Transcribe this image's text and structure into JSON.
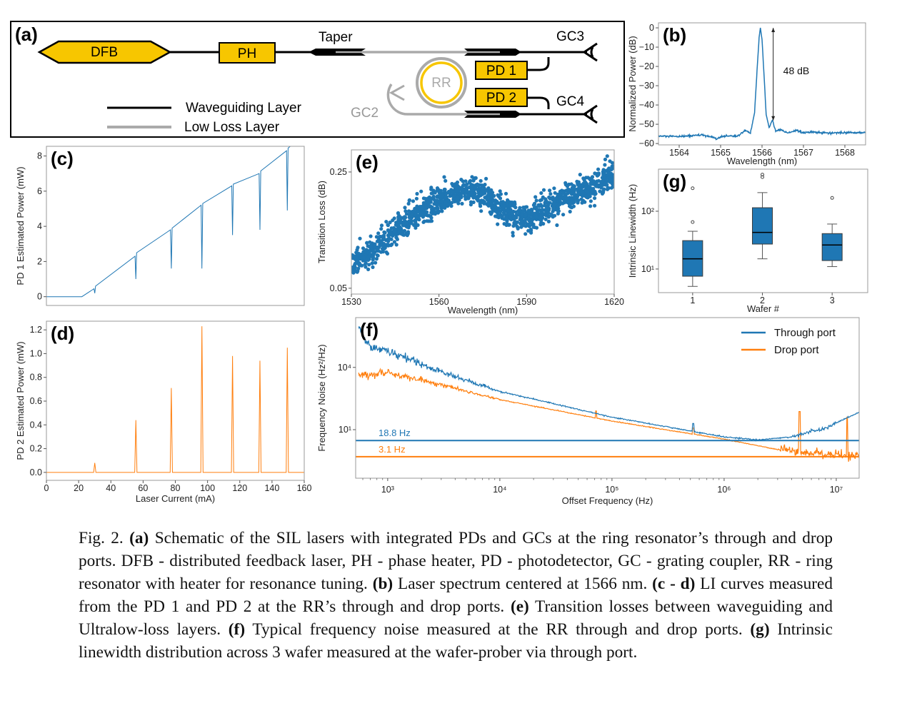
{
  "panel_a": {
    "label": "(a)",
    "dfb": "DFB",
    "ph": "PH",
    "taper": "Taper",
    "rr": "RR",
    "pd1": "PD 1",
    "pd2": "PD 2",
    "gc2": "GC2",
    "gc3": "GC3",
    "gc4": "GC4",
    "legend": [
      "Waveguiding Layer",
      "Low Loss Layer"
    ],
    "colors": {
      "component": "#f7c600",
      "waveguide": "#000000",
      "low_loss": "#aaaaaa"
    }
  },
  "chart_data": [
    {
      "id": "b",
      "panel_label": "(b)",
      "type": "line",
      "xlabel": "Wavelength (nm)",
      "ylabel": "Normalized Power (dB)",
      "xlim": [
        1563.5,
        1568.5
      ],
      "ylim": [
        -60.7,
        2.6
      ],
      "xscale": "linear",
      "yscale": "linear",
      "xticks": [
        1564,
        1565,
        1566,
        1567,
        1568
      ],
      "xtick_labels": [
        "1564",
        "1565",
        "1566",
        "1567",
        "1568"
      ],
      "yticks": [
        0,
        -10,
        -20,
        -30,
        -40,
        -50,
        -60
      ],
      "ytick_labels": [
        "0",
        "−10",
        "−20",
        "−30",
        "−40",
        "−50",
        "−60"
      ],
      "series": [
        {
          "name": "Spectrum",
          "color": "#1f77b4",
          "points": [
            [
              1563.5,
              -56.2
            ],
            [
              1564.0,
              -56.4
            ],
            [
              1564.5,
              -55.6
            ],
            [
              1564.7,
              -56.2
            ],
            [
              1564.9,
              -57.6
            ],
            [
              1565.1,
              -56.0
            ],
            [
              1565.4,
              -56.2
            ],
            [
              1565.6,
              -53.2
            ],
            [
              1565.72,
              -54.6
            ],
            [
              1565.82,
              -44
            ],
            [
              1565.88,
              -22
            ],
            [
              1565.93,
              -5
            ],
            [
              1565.96,
              0
            ],
            [
              1566.0,
              -6
            ],
            [
              1566.05,
              -25
            ],
            [
              1566.1,
              -45
            ],
            [
              1566.17,
              -51.5
            ],
            [
              1566.25,
              -48
            ],
            [
              1566.33,
              -53.5
            ],
            [
              1566.45,
              -52.8
            ],
            [
              1566.6,
              -54.4
            ],
            [
              1566.85,
              -53.2
            ],
            [
              1567.0,
              -54.6
            ],
            [
              1567.2,
              -54.0
            ],
            [
              1567.6,
              -54.6
            ],
            [
              1568.0,
              -54.4
            ],
            [
              1568.5,
              -54.3
            ]
          ]
        }
      ],
      "annotation": {
        "text": "48 dB",
        "from": [
          1566.27,
          0
        ],
        "to": [
          1566.27,
          -48
        ]
      }
    },
    {
      "id": "c",
      "panel_label": "(c)",
      "type": "line",
      "xlabel": "",
      "ylabel": "PD 1 Estimated Power (mW)",
      "xlim": [
        0,
        160
      ],
      "ylim": [
        -0.5,
        8.55
      ],
      "xscale": "linear",
      "yscale": "linear",
      "xticks": [],
      "xtick_labels": [],
      "yticks": [
        0,
        2,
        4,
        6,
        8
      ],
      "ytick_labels": [
        "0",
        "2",
        "4",
        "6",
        "8"
      ],
      "series": [
        {
          "name": "PD 1",
          "color": "#1f77b4",
          "points": [
            [
              0,
              0
            ],
            [
              22,
              0
            ],
            [
              27,
              0.3
            ],
            [
              29.5,
              0.45
            ],
            [
              30,
              0.2
            ],
            [
              30.5,
              0.6
            ],
            [
              55,
              2.3
            ],
            [
              55.5,
              1.0
            ],
            [
              56,
              2.5
            ],
            [
              77,
              3.8
            ],
            [
              77.5,
              1.6
            ],
            [
              78,
              3.9
            ],
            [
              96,
              5.2
            ],
            [
              96.5,
              1.6
            ],
            [
              97,
              5.3
            ],
            [
              115,
              6.3
            ],
            [
              115.5,
              3.5
            ],
            [
              116,
              6.4
            ],
            [
              132,
              7.0
            ],
            [
              132.5,
              3.8
            ],
            [
              133,
              7.15
            ],
            [
              149,
              8.3
            ],
            [
              149.5,
              4.9
            ],
            [
              150,
              8.45
            ],
            [
              160,
              9.2
            ]
          ]
        }
      ]
    },
    {
      "id": "e",
      "panel_label": "(e)",
      "type": "scatter",
      "xlabel": "Wavelength (nm)",
      "ylabel": "Transition Loss (dB)",
      "xlim": [
        1530,
        1620
      ],
      "ylim": [
        0.04,
        0.288
      ],
      "xscale": "linear",
      "yscale": "linear",
      "xticks": [
        1530,
        1560,
        1590,
        1620
      ],
      "xtick_labels": [
        "1530",
        "1560",
        "1590",
        "1620"
      ],
      "yticks": [
        0.25,
        0.05
      ],
      "ytick_labels": [
        "0.25",
        "0.05"
      ],
      "series": [
        {
          "name": "Transition loss",
          "color": "#1f77b4",
          "trend": [
            [
              1530,
              0.09
            ],
            [
              1538,
              0.115
            ],
            [
              1545,
              0.15
            ],
            [
              1552,
              0.18
            ],
            [
              1560,
              0.2
            ],
            [
              1566,
              0.215
            ],
            [
              1572,
              0.22
            ],
            [
              1577,
              0.205
            ],
            [
              1582,
              0.185
            ],
            [
              1587,
              0.17
            ],
            [
              1592,
              0.172
            ],
            [
              1598,
              0.19
            ],
            [
              1605,
              0.21
            ],
            [
              1612,
              0.225
            ],
            [
              1620,
              0.245
            ]
          ],
          "spread": 0.012,
          "count": 1400
        }
      ]
    },
    {
      "id": "g",
      "panel_label": "(g)",
      "type": "box",
      "xlabel": "Wafer #",
      "ylabel": "Intrinsic Linewidth (Hz)",
      "xlim": [
        0.51,
        3.51
      ],
      "ylim": [
        3.9,
        535
      ],
      "xscale": "linear",
      "yscale": "log",
      "xticks": [
        1,
        2,
        3
      ],
      "xtick_labels": [
        "1",
        "2",
        "3"
      ],
      "yticks": [
        10,
        100
      ],
      "ytick_labels": [
        "10¹",
        "10²"
      ],
      "series": [
        {
          "name": "1",
          "whislo": 5,
          "q1": 7.5,
          "med": 15,
          "q3": 31,
          "whishi": 45,
          "fliers": [
            65,
            250
          ]
        },
        {
          "name": "2",
          "whislo": 15,
          "q1": 27,
          "med": 43,
          "q3": 115,
          "whishi": 210,
          "fliers": [
            390,
            430
          ]
        },
        {
          "name": "3",
          "whislo": 11,
          "q1": 14,
          "med": 26,
          "q3": 41,
          "whishi": 60,
          "fliers": [
            170
          ]
        }
      ],
      "color": "#1f77b4"
    },
    {
      "id": "d",
      "panel_label": "(d)",
      "type": "line",
      "xlabel": "Laser Current (mA)",
      "ylabel": "PD 2 Estimated Power (mW)",
      "xlim": [
        0,
        160
      ],
      "ylim": [
        -0.067,
        1.273
      ],
      "xscale": "linear",
      "yscale": "linear",
      "xticks": [
        0,
        20,
        40,
        60,
        80,
        100,
        120,
        140,
        160
      ],
      "xtick_labels": [
        "0",
        "20",
        "40",
        "60",
        "80",
        "100",
        "120",
        "140",
        "160"
      ],
      "yticks": [
        0,
        0.2,
        0.4,
        0.6,
        0.8,
        1.0,
        1.2
      ],
      "ytick_labels": [
        "0.0",
        "0.2",
        "0.4",
        "0.6",
        "0.8",
        "1.0",
        "1.2"
      ],
      "series": [
        {
          "name": "PD 2",
          "color": "#ff7f0e",
          "spikes": [
            [
              30,
              0.08
            ],
            [
              55.5,
              0.44
            ],
            [
              77.5,
              0.71
            ],
            [
              96.5,
              1.23
            ],
            [
              115.5,
              0.98
            ],
            [
              132.5,
              0.94
            ],
            [
              149.5,
              1.05
            ]
          ],
          "baseline": 0.0
        }
      ]
    },
    {
      "id": "f",
      "panel_label": "(f)",
      "type": "line",
      "xlabel": "Offset Frequency (Hz)",
      "ylabel": "Frequency Noise (Hz²/Hz)",
      "xlim": [
        518,
        16000000
      ],
      "ylim": [
        0.046,
        2500000
      ],
      "xscale": "log",
      "yscale": "log",
      "xticks": [
        1000,
        10000,
        100000,
        1000000,
        10000000
      ],
      "xtick_labels": [
        "10³",
        "10⁴",
        "10⁵",
        "10⁶",
        "10⁷"
      ],
      "yticks": [
        10000,
        10
      ],
      "ytick_labels": [
        "10⁴",
        "10¹"
      ],
      "legend": {
        "placement": "top-right",
        "entries": [
          "Through port",
          "Drop port"
        ]
      },
      "series": [
        {
          "name": "Through port",
          "color": "#1f77b4",
          "trend": [
            [
              550,
              1100000
            ],
            [
              600,
              300000
            ],
            [
              700,
              100000
            ],
            [
              1000,
              60000
            ],
            [
              3000,
              6000
            ],
            [
              10000,
              700
            ],
            [
              100000,
              40
            ],
            [
              1000000,
              4.5
            ],
            [
              2000000,
              3.2
            ],
            [
              4000000,
              4.5
            ],
            [
              8000000,
              12
            ],
            [
              16000000,
              70
            ]
          ],
          "noise_decades": 0.25,
          "spikes": [
            [
              530000,
              20
            ],
            [
              72000,
              60
            ]
          ],
          "linewidth_level": 3.0,
          "linewidth_label": "18.8 Hz"
        },
        {
          "name": "Drop port",
          "color": "#ff7f0e",
          "trend": [
            [
              550,
              4500
            ],
            [
              1000,
              5500
            ],
            [
              3000,
              1500
            ],
            [
              10000,
              280
            ],
            [
              100000,
              26
            ],
            [
              1000000,
              3.5
            ],
            [
              3000000,
              1.1
            ],
            [
              10000000,
              0.6
            ],
            [
              16000000,
              0.55
            ]
          ],
          "noise_decades": 0.18,
          "spikes": [
            [
              4700000,
              75
            ],
            [
              12500000,
              40
            ],
            [
              72000,
              80
            ],
            [
              530000,
              12
            ]
          ],
          "linewidth_level": 0.5,
          "linewidth_label": "3.1 Hz"
        }
      ]
    }
  ],
  "caption": {
    "runs": [
      {
        "t": "Fig. 2. ",
        "b": false
      },
      {
        "t": "(a)",
        "b": true
      },
      {
        "t": " Schematic of the SIL lasers with integrated PDs and GCs at the ring resonator’s through and drop ports. DFB - distributed feedback laser, PH - phase heater, PD - photodetector, GC - grating coupler, RR - ring resonator with heater for resonance tuning. ",
        "b": false
      },
      {
        "t": "(b)",
        "b": true
      },
      {
        "t": " Laser spectrum centered at 1566 nm. ",
        "b": false
      },
      {
        "t": "(c - d)",
        "b": true
      },
      {
        "t": " LI curves measured from the PD 1 and PD 2 at the RR’s through and drop ports. ",
        "b": false
      },
      {
        "t": "(e)",
        "b": true
      },
      {
        "t": " Transition losses between waveguiding and Ultralow-loss layers. ",
        "b": false
      },
      {
        "t": "(f)",
        "b": true
      },
      {
        "t": " Typical frequency noise measured at the RR through and drop ports. ",
        "b": false
      },
      {
        "t": "(g)",
        "b": true
      },
      {
        "t": " Intrinsic linewidth distribution across 3 wafer measured at the wafer-prober via through port.",
        "b": false
      }
    ]
  }
}
